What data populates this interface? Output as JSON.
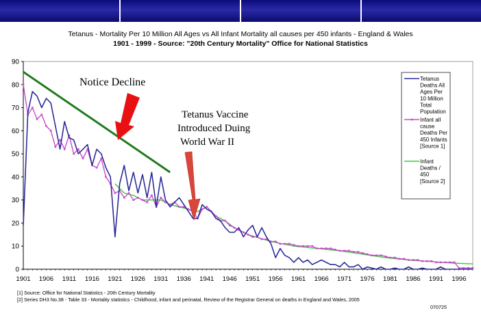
{
  "header_band_segments": 4,
  "title_line1": "Tetanus - Mortality Per 10 Million All Ages vs All Infant Mortality all causes per 450 infants - England & Wales",
  "title_line2": "1901 - 1999 - Source: \"20th Century Mortality\" Office for National Statistics",
  "annotations": {
    "decline": "Notice Decline",
    "vaccine_line1": "Tetanus Vaccine",
    "vaccine_line2": "Introduced Duing",
    "vaccine_line3": "World War II",
    "arrow_color": "#e81010",
    "trend_color": "#1f7a1f"
  },
  "footnotes": {
    "fn1": "[1] Source: Office for National Statistics - 20th Century Mortality",
    "fn2": "[2] Series DH3 No.38 - Table 33 - Mortality statistics - Childhood, infant and perinatal, Review of the Registrar General on deaths in England and Wales, 2005",
    "code": "070725"
  },
  "chart_data": {
    "type": "line",
    "xlim": [
      1901,
      1999
    ],
    "ylim": [
      0,
      90
    ],
    "yticks": [
      0,
      10,
      20,
      30,
      40,
      50,
      60,
      70,
      80,
      90
    ],
    "xticks": [
      "1901",
      "1906",
      "1911",
      "1916",
      "1921",
      "1926",
      "1931",
      "1936",
      "1941",
      "1946",
      "1951",
      "1956",
      "1961",
      "1966",
      "1971",
      "1976",
      "1981",
      "1986",
      "1991",
      "1996"
    ],
    "trend_line": {
      "x": [
        1901,
        1933
      ],
      "y": [
        85.5,
        42
      ]
    },
    "series": [
      {
        "name": "Tetanus Deaths All Ages Per 10 Million Total Population",
        "color": "#2b2b9a",
        "markers": false,
        "x": [
          1901,
          1902,
          1903,
          1904,
          1905,
          1906,
          1907,
          1908,
          1909,
          1910,
          1911,
          1912,
          1913,
          1914,
          1915,
          1916,
          1917,
          1918,
          1919,
          1920,
          1921,
          1922,
          1923,
          1924,
          1925,
          1926,
          1927,
          1928,
          1929,
          1930,
          1931,
          1932,
          1933,
          1934,
          1935,
          1936,
          1937,
          1938,
          1939,
          1940,
          1941,
          1942,
          1943,
          1944,
          1945,
          1946,
          1947,
          1948,
          1949,
          1950,
          1951,
          1952,
          1953,
          1954,
          1955,
          1956,
          1957,
          1958,
          1959,
          1960,
          1961,
          1962,
          1963,
          1964,
          1965,
          1966,
          1967,
          1968,
          1969,
          1970,
          1971,
          1972,
          1973,
          1974,
          1975,
          1976,
          1977,
          1978,
          1979,
          1980,
          1981,
          1982,
          1983,
          1984,
          1985,
          1986,
          1987,
          1988,
          1989,
          1990,
          1991,
          1992,
          1993,
          1994,
          1995,
          1996,
          1997,
          1998,
          1999
        ],
        "y": [
          19,
          68,
          77,
          75,
          70,
          74,
          72,
          62,
          52,
          64,
          57,
          56,
          50,
          52,
          54,
          45,
          52,
          50,
          44,
          40,
          14,
          37,
          45,
          34,
          42,
          33,
          41,
          31,
          42,
          27,
          40,
          30,
          27,
          29,
          31,
          28,
          25,
          22,
          22,
          28,
          26,
          25,
          22,
          21,
          18,
          16,
          16,
          18,
          14,
          17,
          19,
          14,
          18,
          14,
          11,
          5,
          9,
          6,
          5,
          3,
          5,
          3,
          4,
          2,
          3,
          4,
          3,
          2,
          2,
          1,
          3,
          1,
          1,
          2,
          0,
          1,
          0.5,
          0,
          1,
          0,
          0,
          0.5,
          0,
          0,
          1,
          0,
          0,
          0.5,
          0,
          0,
          0,
          1,
          0,
          0,
          0,
          0,
          0,
          0,
          0
        ]
      },
      {
        "name": "Infant all cause Deaths Per 450 Infants [Source 1]",
        "color": "#c94ac9",
        "markers": true,
        "x": [
          1901,
          1902,
          1903,
          1904,
          1905,
          1906,
          1907,
          1908,
          1909,
          1910,
          1911,
          1912,
          1913,
          1914,
          1915,
          1916,
          1917,
          1918,
          1919,
          1920,
          1921,
          1922,
          1923,
          1924,
          1925,
          1926,
          1927,
          1928,
          1929,
          1930,
          1931,
          1932,
          1933,
          1934,
          1935,
          1936,
          1937,
          1938,
          1939,
          1940,
          1941,
          1942,
          1943,
          1944,
          1945,
          1946,
          1947,
          1948,
          1949,
          1950,
          1951,
          1952,
          1953,
          1954,
          1955,
          1956,
          1957,
          1958,
          1959,
          1960,
          1961,
          1962,
          1963,
          1964,
          1965,
          1966,
          1967,
          1968,
          1969,
          1970,
          1971,
          1972,
          1973,
          1974,
          1975,
          1976,
          1977,
          1978,
          1979,
          1980,
          1981,
          1982,
          1983,
          1984,
          1985,
          1986,
          1987,
          1988,
          1989,
          1990,
          1991,
          1992,
          1993,
          1994,
          1995,
          1996,
          1997,
          1998,
          1999
        ],
        "y": [
          80,
          67,
          70,
          65,
          67,
          62,
          60,
          53,
          56,
          52,
          58,
          50,
          52,
          48,
          52,
          45,
          44,
          48,
          40,
          37,
          33,
          34,
          31,
          33,
          30,
          31,
          30,
          29,
          32,
          27,
          31,
          29,
          28,
          29,
          27,
          27,
          26,
          25,
          22,
          26,
          27,
          25,
          23,
          21,
          21,
          19,
          18,
          17,
          16,
          15,
          14,
          14,
          13,
          13,
          12,
          12,
          11,
          11,
          11,
          10.5,
          10,
          10,
          10,
          10,
          9,
          9,
          9,
          9,
          8.5,
          8,
          8,
          8,
          7.5,
          7.5,
          7,
          6.5,
          6,
          6,
          6,
          5.5,
          5,
          5,
          4.5,
          4.5,
          4,
          4,
          4,
          3.5,
          3.5,
          3.5,
          3,
          3,
          3,
          3,
          3,
          0.5,
          0.5,
          0.5,
          0.5
        ]
      },
      {
        "name": "Infant Deaths / 450 [Source 2]",
        "color": "#33cc33",
        "markers": false,
        "x": [
          1921,
          1923,
          1925,
          1927,
          1929,
          1931,
          1933,
          1935,
          1937,
          1939,
          1941,
          1943,
          1945,
          1947,
          1950,
          1955,
          1960,
          1965,
          1970,
          1975,
          1980,
          1985,
          1990,
          1995,
          1999
        ],
        "y": [
          37,
          33,
          32,
          30,
          30,
          30,
          28,
          27,
          26,
          25,
          27,
          23,
          21,
          18,
          15,
          12,
          10,
          9,
          8,
          6.5,
          5,
          4,
          3.3,
          2.6,
          2.3
        ]
      }
    ]
  }
}
